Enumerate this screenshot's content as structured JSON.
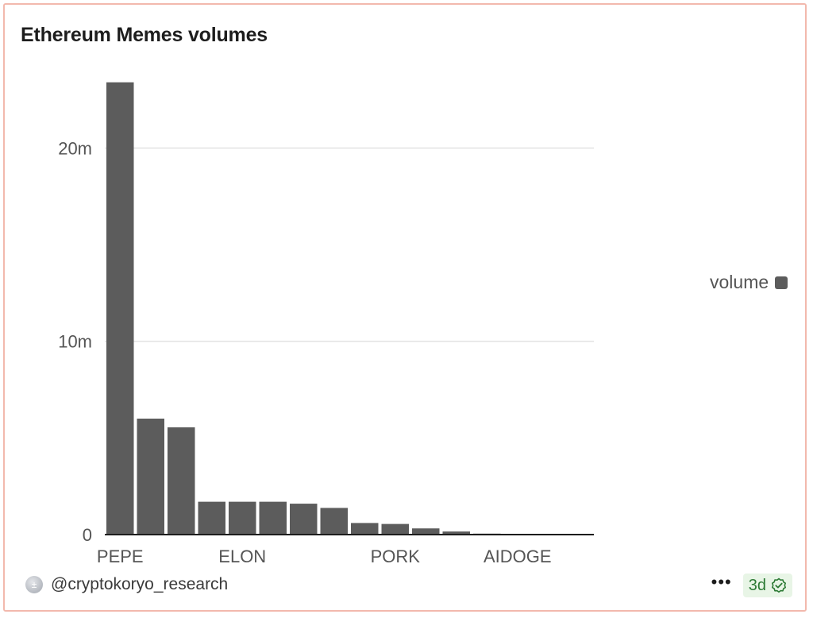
{
  "card": {
    "title": "Ethereum Memes volumes",
    "author": "@cryptokoryo_research",
    "more_label": "•••",
    "age_label": "3d"
  },
  "legend": {
    "label": "volume",
    "color": "#5c5c5c"
  },
  "chart_data": {
    "type": "bar",
    "categories": [
      "PEPE",
      "",
      "",
      "",
      "ELON",
      "",
      "",
      "",
      "",
      "PORK",
      "",
      "",
      "",
      "AIDOGE",
      "",
      ""
    ],
    "tick_labels": {
      "0": "PEPE",
      "4": "ELON",
      "9": "PORK",
      "13": "AIDOGE"
    },
    "series": [
      {
        "name": "volume",
        "color": "#5c5c5c",
        "values": [
          23.4,
          6.0,
          5.55,
          1.7,
          1.7,
          1.7,
          1.6,
          1.38,
          0.6,
          0.55,
          0.32,
          0.16,
          0.05,
          0.03,
          0.02,
          0.02
        ]
      }
    ],
    "value_unit": "millions",
    "yticks": [
      0,
      10,
      20
    ],
    "ytick_labels": [
      "0",
      "10m",
      "20m"
    ],
    "ylim": [
      0,
      24
    ],
    "grid": true,
    "legend_position": "right",
    "xlabel": "",
    "ylabel": ""
  }
}
